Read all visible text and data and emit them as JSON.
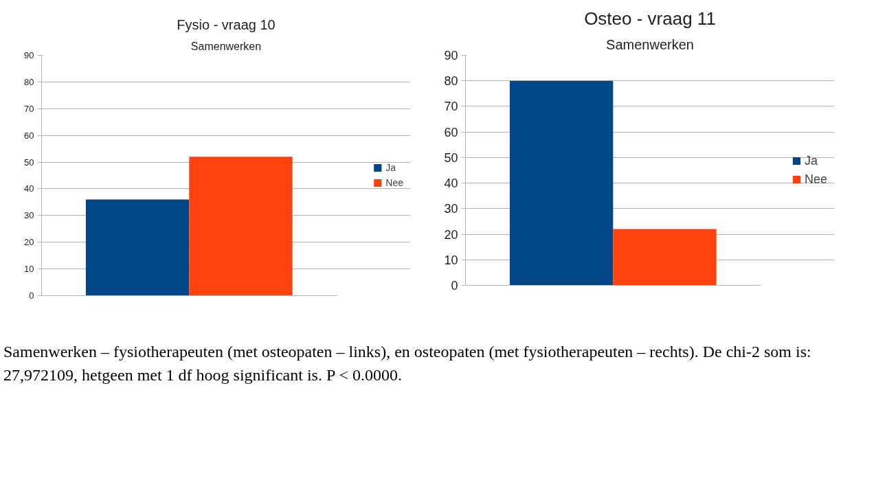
{
  "chart_data": [
    {
      "type": "bar",
      "title": "Fysio - vraag 10",
      "subtitle": "Samenwerken",
      "categories": [
        null
      ],
      "series": [
        {
          "name": "Ja",
          "color": "#004586",
          "values": [
            36
          ]
        },
        {
          "name": "Nee",
          "color": "#ff420e",
          "values": [
            52
          ]
        }
      ],
      "ylim": [
        0,
        90
      ],
      "yticks": [
        0,
        10,
        20,
        30,
        40,
        50,
        60,
        70,
        80,
        90
      ],
      "grid": "y",
      "legend": "right",
      "annotations": [
        "Samenwerken – fysiotherapeuten (met osteopaten – links), en osteopaten (met  fysiotherapeuten – rechts). De chi-2 som is: 27,972109, hetgeen met 1 df hoog significant is. P < 0.0000."
      ]
    },
    {
      "type": "bar",
      "title": "Osteo - vraag 11",
      "subtitle": "Samenwerken",
      "categories": [
        null
      ],
      "series": [
        {
          "name": "Ja",
          "color": "#004586",
          "values": [
            80
          ]
        },
        {
          "name": "Nee",
          "color": "#ff420e",
          "values": [
            22
          ]
        }
      ],
      "ylim": [
        0,
        90
      ],
      "yticks": [
        0,
        10,
        20,
        30,
        40,
        50,
        60,
        70,
        80,
        90
      ],
      "grid": "y",
      "legend": "right"
    }
  ]
}
